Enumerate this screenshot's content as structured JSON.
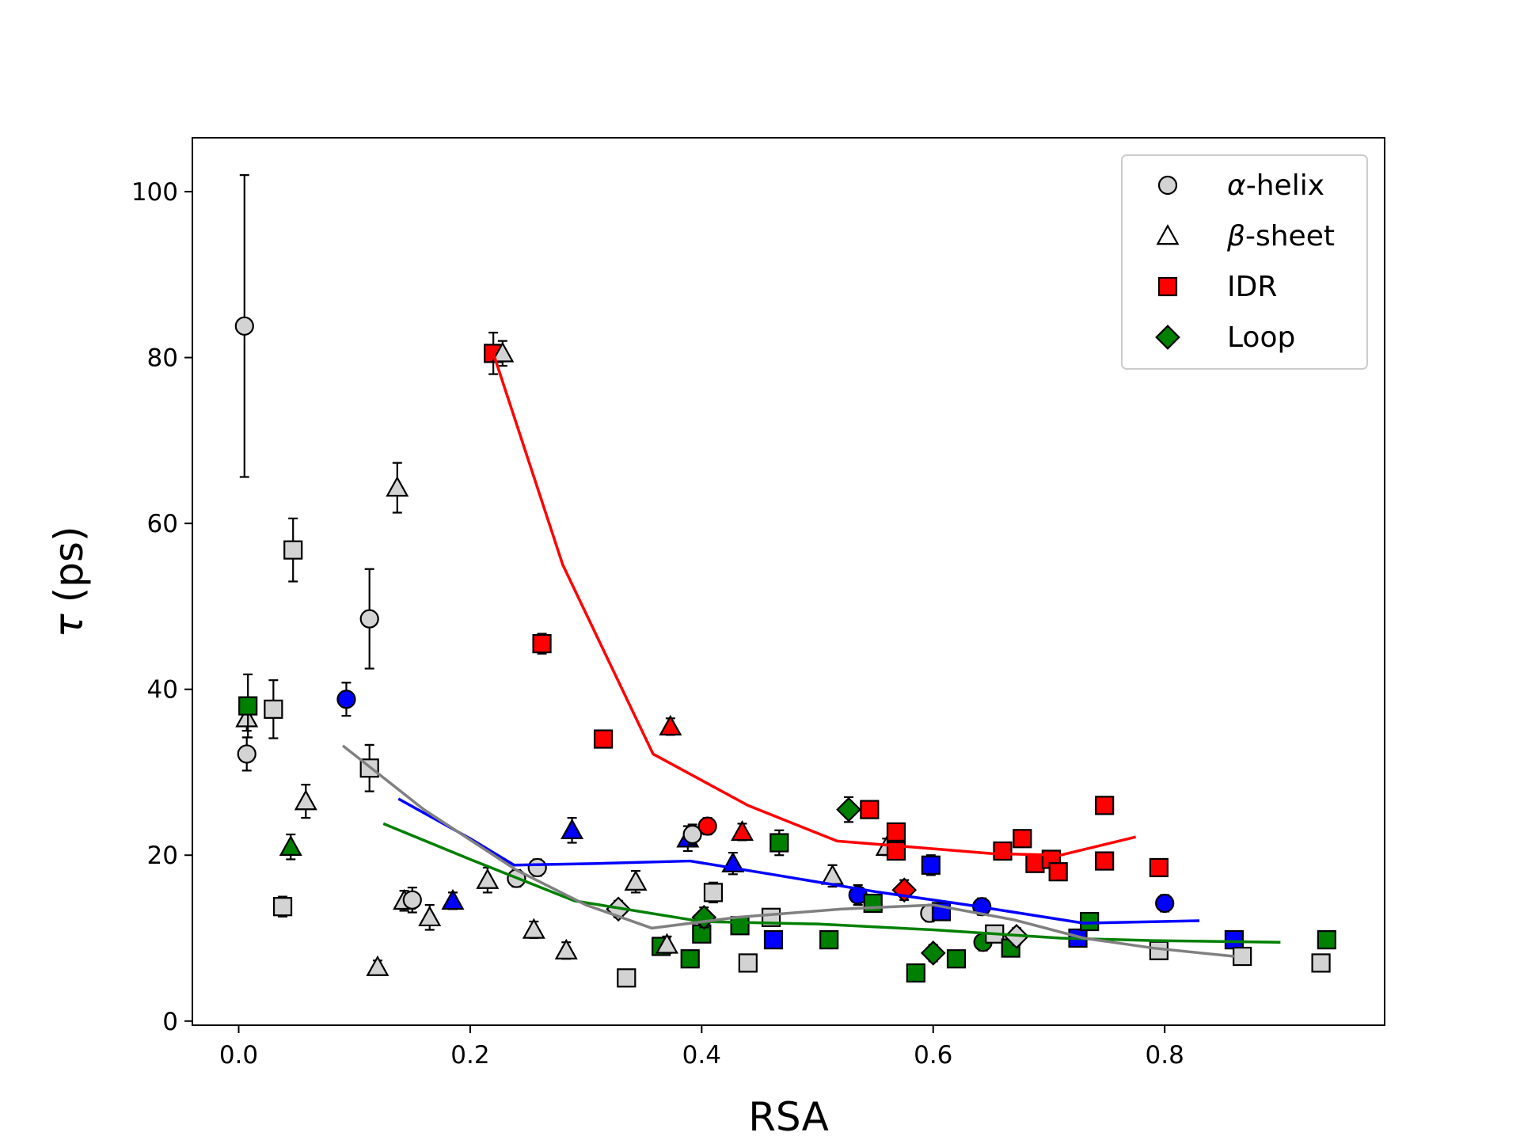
{
  "chart_data": {
    "type": "scatter",
    "title": "",
    "xlabel": "RSA",
    "ylabel_symbol": "τ",
    "ylabel_unit": "(ps)",
    "xlim": [
      -0.04,
      0.99
    ],
    "ylim": [
      -0.5,
      106.5
    ],
    "xticks": [
      0.0,
      0.2,
      0.4,
      0.6,
      0.8
    ],
    "xtick_labels": [
      "0.0",
      "0.2",
      "0.4",
      "0.6",
      "0.8"
    ],
    "yticks": [
      0,
      20,
      40,
      60,
      80,
      100
    ],
    "ytick_labels": [
      "0",
      "20",
      "40",
      "60",
      "80",
      "100"
    ],
    "grid": false,
    "legend_position": "top-right",
    "legend": [
      {
        "marker": "circle",
        "greek": "α",
        "text": "-helix",
        "color": "#d3d3d3"
      },
      {
        "marker": "triangle",
        "greek": "β",
        "text": "-sheet",
        "color": "#ffffff"
      },
      {
        "marker": "square",
        "greek": "",
        "text": "IDR",
        "color": "#ff0000"
      },
      {
        "marker": "diamond",
        "greek": "",
        "text": "Loop",
        "color": "#008000"
      }
    ],
    "colors": {
      "lightgray": "#d3d3d3",
      "white": "#ffffff",
      "blue": "#0000ff",
      "red": "#ff0000",
      "green": "#008000",
      "gray": "#808080"
    },
    "points": [
      {
        "x": 0.005,
        "y": 83.8,
        "err": 18.2,
        "marker": "circle",
        "color": "#d3d3d3"
      },
      {
        "x": 0.007,
        "y": 32.2,
        "err": 2.0,
        "marker": "circle",
        "color": "#d3d3d3"
      },
      {
        "x": 0.007,
        "y": 36.5,
        "err": 1.5,
        "marker": "triangle",
        "color": "#d3d3d3"
      },
      {
        "x": 0.008,
        "y": 38.0,
        "err": 3.8,
        "marker": "square",
        "color": "#008000"
      },
      {
        "x": 0.03,
        "y": 37.6,
        "err": 3.5,
        "marker": "square",
        "color": "#d3d3d3"
      },
      {
        "x": 0.038,
        "y": 13.8,
        "err": 1.2,
        "marker": "square",
        "color": "#d3d3d3"
      },
      {
        "x": 0.047,
        "y": 56.8,
        "err": 3.8,
        "marker": "square",
        "color": "#d3d3d3"
      },
      {
        "x": 0.045,
        "y": 21.0,
        "err": 1.5,
        "marker": "triangle",
        "color": "#008000"
      },
      {
        "x": 0.058,
        "y": 26.5,
        "err": 2.0,
        "marker": "triangle",
        "color": "#d3d3d3"
      },
      {
        "x": 0.093,
        "y": 38.8,
        "err": 2.0,
        "marker": "circle",
        "color": "#0000ff"
      },
      {
        "x": 0.113,
        "y": 48.5,
        "err": 6.0,
        "marker": "circle",
        "color": "#d3d3d3"
      },
      {
        "x": 0.113,
        "y": 30.5,
        "err": 2.8,
        "marker": "square",
        "color": "#d3d3d3"
      },
      {
        "x": 0.12,
        "y": 6.5,
        "err": 0.8,
        "marker": "triangle",
        "color": "#d3d3d3"
      },
      {
        "x": 0.137,
        "y": 64.3,
        "err": 3.0,
        "marker": "triangle",
        "color": "#d3d3d3"
      },
      {
        "x": 0.143,
        "y": 14.5,
        "err": 1.2,
        "marker": "triangle",
        "color": "#d3d3d3"
      },
      {
        "x": 0.15,
        "y": 14.6,
        "err": 1.5,
        "marker": "circle",
        "color": "#d3d3d3"
      },
      {
        "x": 0.165,
        "y": 12.5,
        "err": 1.5,
        "marker": "triangle",
        "color": "#d3d3d3"
      },
      {
        "x": 0.185,
        "y": 14.5,
        "err": 1.0,
        "marker": "triangle",
        "color": "#0000ff"
      },
      {
        "x": 0.215,
        "y": 17.0,
        "err": 1.5,
        "marker": "triangle",
        "color": "#d3d3d3"
      },
      {
        "x": 0.22,
        "y": 80.5,
        "err": 2.5,
        "marker": "square",
        "color": "#ff0000"
      },
      {
        "x": 0.228,
        "y": 80.5,
        "err": 1.5,
        "marker": "triangle",
        "color": "#d3d3d3"
      },
      {
        "x": 0.24,
        "y": 17.2,
        "err": 1.0,
        "marker": "circle",
        "color": "#d3d3d3"
      },
      {
        "x": 0.255,
        "y": 11.0,
        "err": 1.0,
        "marker": "triangle",
        "color": "#d3d3d3"
      },
      {
        "x": 0.258,
        "y": 18.5,
        "err": 1.0,
        "marker": "circle",
        "color": "#d3d3d3"
      },
      {
        "x": 0.262,
        "y": 45.5,
        "err": 1.2,
        "marker": "square",
        "color": "#ff0000"
      },
      {
        "x": 0.283,
        "y": 8.5,
        "err": 1.0,
        "marker": "triangle",
        "color": "#d3d3d3"
      },
      {
        "x": 0.288,
        "y": 23.0,
        "err": 1.5,
        "marker": "triangle",
        "color": "#0000ff"
      },
      {
        "x": 0.315,
        "y": 34.0,
        "err": 1.0,
        "marker": "square",
        "color": "#ff0000"
      },
      {
        "x": 0.328,
        "y": 13.5,
        "err": 1.0,
        "marker": "diamond",
        "color": "#d3d3d3"
      },
      {
        "x": 0.335,
        "y": 5.2,
        "err": 0.8,
        "marker": "square",
        "color": "#d3d3d3"
      },
      {
        "x": 0.343,
        "y": 16.8,
        "err": 1.3,
        "marker": "triangle",
        "color": "#d3d3d3"
      },
      {
        "x": 0.365,
        "y": 9.0,
        "err": 1.0,
        "marker": "square",
        "color": "#008000"
      },
      {
        "x": 0.37,
        "y": 9.2,
        "err": 1.0,
        "marker": "triangle",
        "color": "#d3d3d3"
      },
      {
        "x": 0.373,
        "y": 35.5,
        "err": 1.0,
        "marker": "triangle",
        "color": "#ff0000"
      },
      {
        "x": 0.388,
        "y": 22.0,
        "err": 1.5,
        "marker": "triangle",
        "color": "#0000ff"
      },
      {
        "x": 0.39,
        "y": 7.5,
        "err": 1.0,
        "marker": "square",
        "color": "#008000"
      },
      {
        "x": 0.392,
        "y": 22.5,
        "err": 1.2,
        "marker": "circle",
        "color": "#d3d3d3"
      },
      {
        "x": 0.4,
        "y": 10.5,
        "err": 1.0,
        "marker": "square",
        "color": "#008000"
      },
      {
        "x": 0.402,
        "y": 12.5,
        "err": 1.2,
        "marker": "diamond",
        "color": "#008000"
      },
      {
        "x": 0.405,
        "y": 23.5,
        "err": 1.0,
        "marker": "circle",
        "color": "#ff0000"
      },
      {
        "x": 0.41,
        "y": 15.5,
        "err": 1.2,
        "marker": "square",
        "color": "#d3d3d3"
      },
      {
        "x": 0.427,
        "y": 19.0,
        "err": 1.3,
        "marker": "triangle",
        "color": "#0000ff"
      },
      {
        "x": 0.433,
        "y": 11.5,
        "err": 1.0,
        "marker": "square",
        "color": "#008000"
      },
      {
        "x": 0.435,
        "y": 22.8,
        "err": 1.0,
        "marker": "triangle",
        "color": "#ff0000"
      },
      {
        "x": 0.44,
        "y": 7.0,
        "err": 1.0,
        "marker": "square",
        "color": "#d3d3d3"
      },
      {
        "x": 0.46,
        "y": 12.5,
        "err": 1.0,
        "marker": "square",
        "color": "#d3d3d3"
      },
      {
        "x": 0.462,
        "y": 9.8,
        "err": 1.0,
        "marker": "square",
        "color": "#0000ff"
      },
      {
        "x": 0.467,
        "y": 21.5,
        "err": 1.5,
        "marker": "square",
        "color": "#008000"
      },
      {
        "x": 0.51,
        "y": 9.8,
        "err": 1.0,
        "marker": "square",
        "color": "#008000"
      },
      {
        "x": 0.513,
        "y": 17.5,
        "err": 1.3,
        "marker": "triangle",
        "color": "#d3d3d3"
      },
      {
        "x": 0.527,
        "y": 25.5,
        "err": 1.5,
        "marker": "diamond",
        "color": "#008000"
      },
      {
        "x": 0.535,
        "y": 15.2,
        "err": 1.2,
        "marker": "circle",
        "color": "#0000ff"
      },
      {
        "x": 0.545,
        "y": 25.5,
        "err": 1.0,
        "marker": "square",
        "color": "#ff0000"
      },
      {
        "x": 0.548,
        "y": 14.2,
        "err": 1.0,
        "marker": "square",
        "color": "#008000"
      },
      {
        "x": 0.56,
        "y": 21.0,
        "err": 1.0,
        "marker": "triangle",
        "color": "#d3d3d3"
      },
      {
        "x": 0.568,
        "y": 20.5,
        "err": 1.0,
        "marker": "square",
        "color": "#ff0000"
      },
      {
        "x": 0.568,
        "y": 22.8,
        "err": 1.0,
        "marker": "square",
        "color": "#ff0000"
      },
      {
        "x": 0.575,
        "y": 15.8,
        "err": 1.2,
        "marker": "diamond",
        "color": "#ff0000"
      },
      {
        "x": 0.585,
        "y": 5.8,
        "err": 1.0,
        "marker": "square",
        "color": "#008000"
      },
      {
        "x": 0.597,
        "y": 13.0,
        "err": 1.0,
        "marker": "circle",
        "color": "#d3d3d3"
      },
      {
        "x": 0.598,
        "y": 18.8,
        "err": 1.2,
        "marker": "square",
        "color": "#0000ff"
      },
      {
        "x": 0.6,
        "y": 8.2,
        "err": 1.0,
        "marker": "diamond",
        "color": "#008000"
      },
      {
        "x": 0.607,
        "y": 13.2,
        "err": 1.0,
        "marker": "square",
        "color": "#0000ff"
      },
      {
        "x": 0.62,
        "y": 7.5,
        "err": 1.0,
        "marker": "square",
        "color": "#008000"
      },
      {
        "x": 0.642,
        "y": 13.8,
        "err": 1.0,
        "marker": "circle",
        "color": "#0000ff"
      },
      {
        "x": 0.643,
        "y": 9.5,
        "err": 1.0,
        "marker": "circle",
        "color": "#008000"
      },
      {
        "x": 0.653,
        "y": 10.5,
        "err": 1.0,
        "marker": "square",
        "color": "#d3d3d3"
      },
      {
        "x": 0.66,
        "y": 20.5,
        "err": 1.0,
        "marker": "square",
        "color": "#ff0000"
      },
      {
        "x": 0.667,
        "y": 8.8,
        "err": 1.0,
        "marker": "square",
        "color": "#008000"
      },
      {
        "x": 0.672,
        "y": 10.2,
        "err": 1.0,
        "marker": "diamond",
        "color": "#d3d3d3"
      },
      {
        "x": 0.677,
        "y": 22.0,
        "err": 1.0,
        "marker": "square",
        "color": "#ff0000"
      },
      {
        "x": 0.688,
        "y": 19.0,
        "err": 1.0,
        "marker": "square",
        "color": "#ff0000"
      },
      {
        "x": 0.702,
        "y": 19.5,
        "err": 1.0,
        "marker": "square",
        "color": "#ff0000"
      },
      {
        "x": 0.708,
        "y": 18.0,
        "err": 1.0,
        "marker": "square",
        "color": "#ff0000"
      },
      {
        "x": 0.725,
        "y": 10.0,
        "err": 1.0,
        "marker": "square",
        "color": "#0000ff"
      },
      {
        "x": 0.735,
        "y": 12.0,
        "err": 1.0,
        "marker": "square",
        "color": "#008000"
      },
      {
        "x": 0.748,
        "y": 26.0,
        "err": 1.0,
        "marker": "square",
        "color": "#ff0000"
      },
      {
        "x": 0.748,
        "y": 19.3,
        "err": 1.0,
        "marker": "square",
        "color": "#ff0000"
      },
      {
        "x": 0.795,
        "y": 18.5,
        "err": 1.0,
        "marker": "square",
        "color": "#ff0000"
      },
      {
        "x": 0.795,
        "y": 8.5,
        "err": 1.0,
        "marker": "square",
        "color": "#d3d3d3"
      },
      {
        "x": 0.8,
        "y": 14.2,
        "err": 1.0,
        "marker": "circle",
        "color": "#0000ff"
      },
      {
        "x": 0.86,
        "y": 9.8,
        "err": 1.0,
        "marker": "square",
        "color": "#0000ff"
      },
      {
        "x": 0.867,
        "y": 7.8,
        "err": 1.0,
        "marker": "square",
        "color": "#d3d3d3"
      },
      {
        "x": 0.935,
        "y": 7.0,
        "err": 1.0,
        "marker": "square",
        "color": "#d3d3d3"
      },
      {
        "x": 0.94,
        "y": 9.8,
        "err": 1.0,
        "marker": "square",
        "color": "#008000"
      }
    ],
    "lines": [
      {
        "color": "#ff0000",
        "x": [
          0.22,
          0.28,
          0.358,
          0.44,
          0.517,
          0.58,
          0.65,
          0.71,
          0.775
        ],
        "y": [
          80.5,
          55.0,
          32.2,
          26.0,
          21.7,
          21.0,
          20.2,
          20.0,
          22.2
        ]
      },
      {
        "color": "#0000ff",
        "x": [
          0.138,
          0.2,
          0.238,
          0.31,
          0.39,
          0.46,
          0.55,
          0.63,
          0.73,
          0.83
        ],
        "y": [
          26.8,
          22.0,
          18.8,
          19.0,
          19.3,
          17.7,
          15.6,
          14.0,
          11.8,
          12.1
        ]
      },
      {
        "color": "#008000",
        "x": [
          0.125,
          0.2,
          0.29,
          0.4,
          0.5,
          0.6,
          0.71,
          0.79,
          0.9
        ],
        "y": [
          23.8,
          19.5,
          14.5,
          12.0,
          11.7,
          11.0,
          10.0,
          9.7,
          9.5
        ]
      },
      {
        "color": "#808080",
        "x": [
          0.09,
          0.16,
          0.24,
          0.3,
          0.357,
          0.43,
          0.52,
          0.6,
          0.67,
          0.73,
          0.79,
          0.86
        ],
        "y": [
          33.2,
          25.5,
          18.2,
          14.0,
          11.2,
          12.5,
          13.5,
          14.0,
          12.2,
          10.0,
          8.8,
          7.8
        ]
      }
    ]
  }
}
